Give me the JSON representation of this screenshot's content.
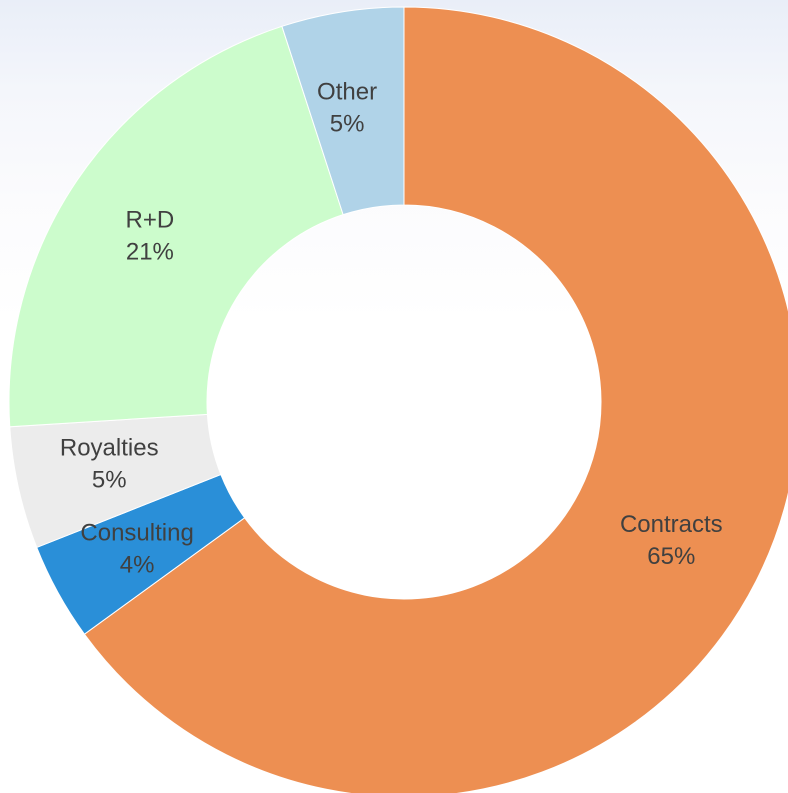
{
  "chart_data": {
    "type": "pie",
    "variant": "donut",
    "title": "",
    "start_angle_deg": 0,
    "direction": "clockwise",
    "slices": [
      {
        "label": "Contracts",
        "value": 65,
        "value_label": "65%",
        "color": "#ed8f52"
      },
      {
        "label": "Consulting",
        "value": 4,
        "value_label": "4%",
        "color": "#2a8fd8"
      },
      {
        "label": "Royalties",
        "value": 5,
        "value_label": "5%",
        "color": "#ececec"
      },
      {
        "label": "R+D",
        "value": 21,
        "value_label": "21%",
        "color": "#ccfccc"
      },
      {
        "label": "Other",
        "value": 5,
        "value_label": "5%",
        "color": "#b0d3e8"
      }
    ],
    "legend": "none"
  }
}
